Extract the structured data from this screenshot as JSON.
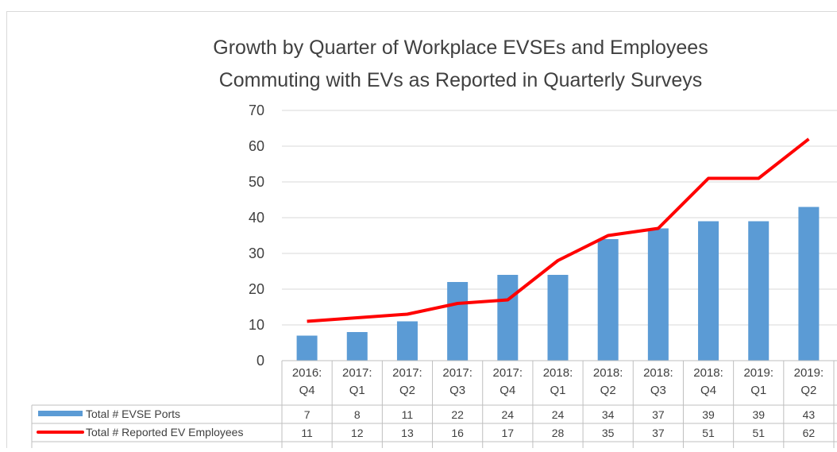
{
  "chart_data": {
    "type": "bar",
    "title": [
      "Growth by Quarter of Workplace EVSEs and Employees",
      "Commuting with EVs as Reported in Quarterly Surveys"
    ],
    "categories": [
      "2016: Q4",
      "2017: Q1",
      "2017: Q2",
      "2017: Q3",
      "2017: Q4",
      "2018: Q1",
      "2018: Q2",
      "2018: Q3",
      "2018: Q4",
      "2019: Q1",
      "2019: Q2"
    ],
    "series": [
      {
        "name": "Total # EVSE Ports",
        "type": "bar",
        "color": "#5b9bd5",
        "values": [
          7,
          8,
          11,
          22,
          24,
          24,
          34,
          37,
          39,
          39,
          43
        ]
      },
      {
        "name": "Total # Reported EV Employees",
        "type": "line",
        "color": "#ff0000",
        "values": [
          11,
          12,
          13,
          16,
          17,
          28,
          35,
          37,
          51,
          51,
          62
        ]
      }
    ],
    "ylim": [
      0,
      70
    ],
    "yticks": [
      0,
      10,
      20,
      30,
      40,
      50,
      60,
      70
    ],
    "grid": true,
    "data_table": true
  }
}
